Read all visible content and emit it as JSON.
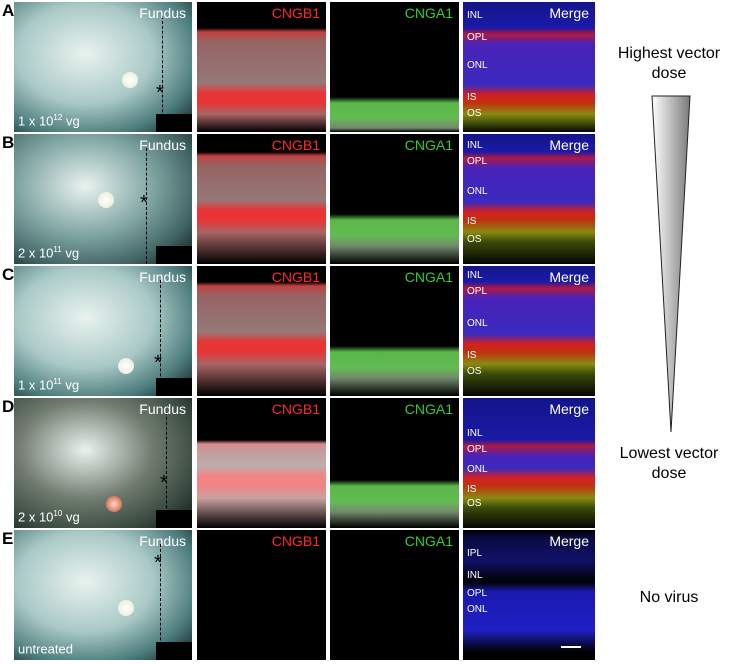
{
  "rows": [
    {
      "letter": "A",
      "fundus_title": "Fundus",
      "dose": "1 x 10",
      "dose_exp": "12",
      "dose_unit": " vg",
      "cngb1": "CNGB1",
      "cnga1": "CNGA1",
      "merge": "Merge",
      "layers": [
        "INL",
        "OPL",
        "ONL",
        "IS",
        "OS"
      ]
    },
    {
      "letter": "B",
      "fundus_title": "Fundus",
      "dose": "2 x 10",
      "dose_exp": "11",
      "dose_unit": " vg",
      "cngb1": "CNGB1",
      "cnga1": "CNGA1",
      "merge": "Merge",
      "layers": [
        "INL",
        "OPL",
        "ONL",
        "IS",
        "OS"
      ]
    },
    {
      "letter": "C",
      "fundus_title": "Fundus",
      "dose": "1 x 10",
      "dose_exp": "11",
      "dose_unit": " vg",
      "cngb1": "CNGB1",
      "cnga1": "CNGA1",
      "merge": "Merge",
      "layers": [
        "INL",
        "OPL",
        "ONL",
        "IS",
        "OS"
      ]
    },
    {
      "letter": "D",
      "fundus_title": "Fundus",
      "dose": "2 x 10",
      "dose_exp": "10",
      "dose_unit": " vg",
      "cngb1": "CNGB1",
      "cnga1": "CNGA1",
      "merge": "Merge",
      "layers": [
        "INL",
        "OPL",
        "ONL",
        "IS",
        "OS"
      ]
    },
    {
      "letter": "E",
      "fundus_title": "Fundus",
      "dose": "untreated",
      "dose_exp": "",
      "dose_unit": "",
      "cngb1": "CNGB1",
      "cnga1": "CNGA1",
      "merge": "Merge",
      "layers": [
        "IPL",
        "INL",
        "OPL",
        "ONL"
      ]
    }
  ],
  "side": {
    "highest_line1": "Highest vector",
    "highest_line2": "dose",
    "lowest_line1": "Lowest vector",
    "lowest_line2": "dose",
    "no_virus": "No virus"
  },
  "colors": {
    "red": "#ff2a2a",
    "green": "#33cc33",
    "title_white": "#ffffff"
  }
}
